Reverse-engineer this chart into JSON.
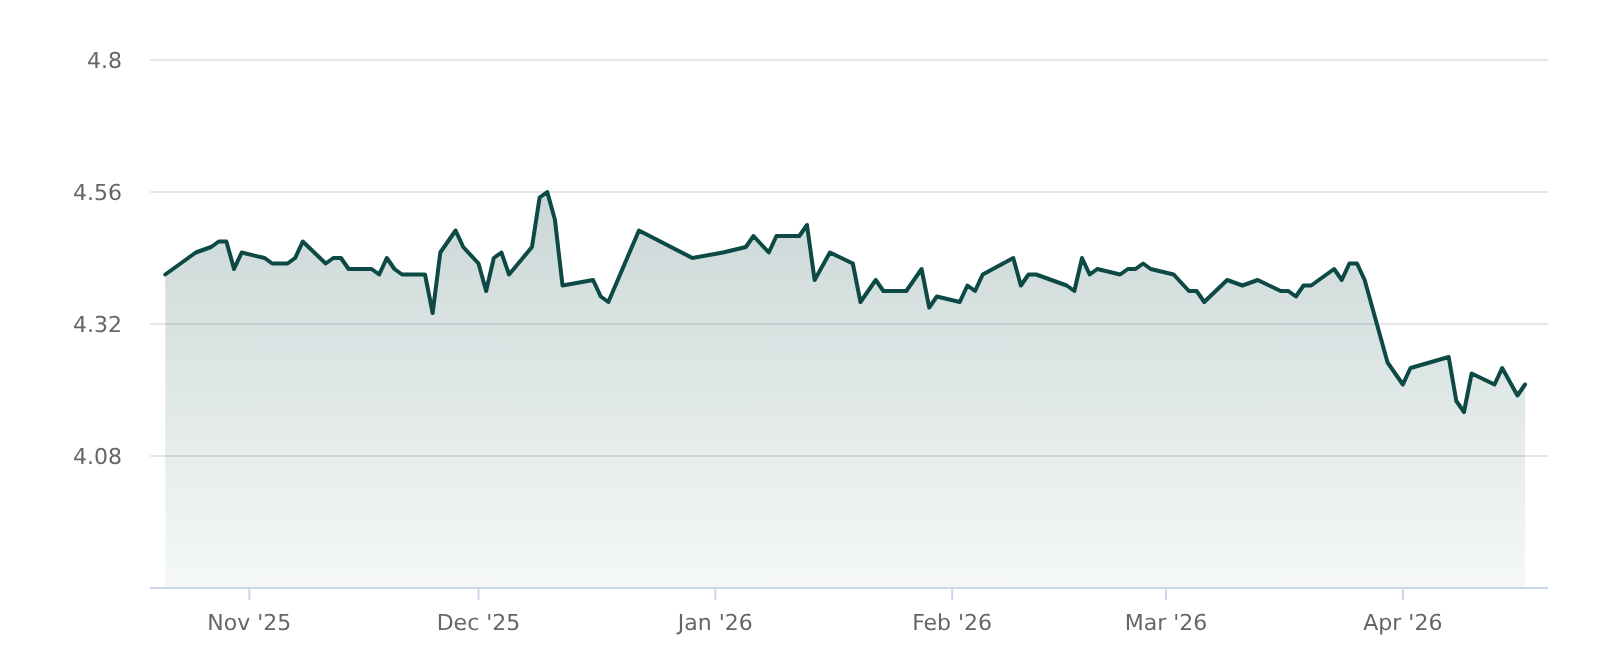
{
  "chart_data": {
    "type": "area",
    "xlim": [
      "2025-10-19",
      "2026-04-20"
    ],
    "ylim": [
      3.84,
      4.8
    ],
    "xticks": [
      {
        "value": "2025-11-01",
        "label": "Nov '25"
      },
      {
        "value": "2025-12-01",
        "label": "Dec '25"
      },
      {
        "value": "2026-01-01",
        "label": "Jan '26"
      },
      {
        "value": "2026-02-01",
        "label": "Feb '26"
      },
      {
        "value": "2026-03-01",
        "label": "Mar '26"
      },
      {
        "value": "2026-04-01",
        "label": "Apr '26"
      }
    ],
    "yticks": [
      4.08,
      4.32,
      4.56,
      4.8
    ],
    "grid": "y",
    "marker": "none",
    "line_style": "solid",
    "x": [
      "2025-10-21",
      "2025-10-22",
      "2025-10-23",
      "2025-10-25",
      "2025-10-27",
      "2025-10-28",
      "2025-10-29",
      "2025-10-30",
      "2025-10-31",
      "2025-11-03",
      "2025-11-04",
      "2025-11-06",
      "2025-11-07",
      "2025-11-08",
      "2025-11-11",
      "2025-11-12",
      "2025-11-13",
      "2025-11-14",
      "2025-11-17",
      "2025-11-18",
      "2025-11-19",
      "2025-11-20",
      "2025-11-21",
      "2025-11-24",
      "2025-11-25",
      "2025-11-26",
      "2025-11-27",
      "2025-11-28",
      "2025-11-29",
      "2025-12-01",
      "2025-12-02",
      "2025-12-03",
      "2025-12-04",
      "2025-12-05",
      "2025-12-08",
      "2025-12-09",
      "2025-12-10",
      "2025-12-11",
      "2025-12-12",
      "2025-12-16",
      "2025-12-17",
      "2025-12-18",
      "2025-12-22",
      "2025-12-29",
      "2026-01-02",
      "2026-01-05",
      "2026-01-06",
      "2026-01-08",
      "2026-01-09",
      "2026-01-12",
      "2026-01-13",
      "2026-01-14",
      "2026-01-16",
      "2026-01-19",
      "2026-01-20",
      "2026-01-22",
      "2026-01-23",
      "2026-01-26",
      "2026-01-28",
      "2026-01-29",
      "2026-01-30",
      "2026-02-02",
      "2026-02-03",
      "2026-02-04",
      "2026-02-05",
      "2026-02-09",
      "2026-02-10",
      "2026-02-11",
      "2026-02-12",
      "2026-02-16",
      "2026-02-17",
      "2026-02-18",
      "2026-02-19",
      "2026-02-20",
      "2026-02-23",
      "2026-02-24",
      "2026-02-25",
      "2026-02-26",
      "2026-02-27",
      "2026-03-02",
      "2026-03-04",
      "2026-03-05",
      "2026-03-06",
      "2026-03-09",
      "2026-03-11",
      "2026-03-13",
      "2026-03-16",
      "2026-03-17",
      "2026-03-18",
      "2026-03-19",
      "2026-03-20",
      "2026-03-23",
      "2026-03-24",
      "2026-03-25",
      "2026-03-26",
      "2026-03-27",
      "2026-03-30",
      "2026-04-01",
      "2026-04-02",
      "2026-04-07",
      "2026-04-08",
      "2026-04-09",
      "2026-04-10",
      "2026-04-13",
      "2026-04-14",
      "2026-04-16",
      "2026-04-17"
    ],
    "series": [
      {
        "color": "#0d4a45",
        "values": [
          4.41,
          4.42,
          4.43,
          4.45,
          4.46,
          4.47,
          4.47,
          4.42,
          4.45,
          4.44,
          4.43,
          4.43,
          4.44,
          4.47,
          4.43,
          4.44,
          4.44,
          4.42,
          4.42,
          4.41,
          4.44,
          4.42,
          4.41,
          4.41,
          4.34,
          4.45,
          4.47,
          4.49,
          4.46,
          4.43,
          4.38,
          4.44,
          4.45,
          4.41,
          4.46,
          4.55,
          4.56,
          4.51,
          4.39,
          4.4,
          4.37,
          4.36,
          4.49,
          4.44,
          4.45,
          4.46,
          4.48,
          4.45,
          4.48,
          4.48,
          4.5,
          4.4,
          4.45,
          4.43,
          4.36,
          4.4,
          4.38,
          4.38,
          4.42,
          4.35,
          4.37,
          4.36,
          4.39,
          4.38,
          4.41,
          4.44,
          4.39,
          4.41,
          4.41,
          4.39,
          4.38,
          4.44,
          4.41,
          4.42,
          4.41,
          4.42,
          4.42,
          4.43,
          4.42,
          4.41,
          4.38,
          4.38,
          4.36,
          4.4,
          4.39,
          4.4,
          4.38,
          4.38,
          4.37,
          4.39,
          4.39,
          4.42,
          4.4,
          4.43,
          4.43,
          4.4,
          4.25,
          4.21,
          4.24,
          4.26,
          4.18,
          4.16,
          4.23,
          4.21,
          4.24,
          4.19,
          4.21
        ]
      }
    ]
  }
}
